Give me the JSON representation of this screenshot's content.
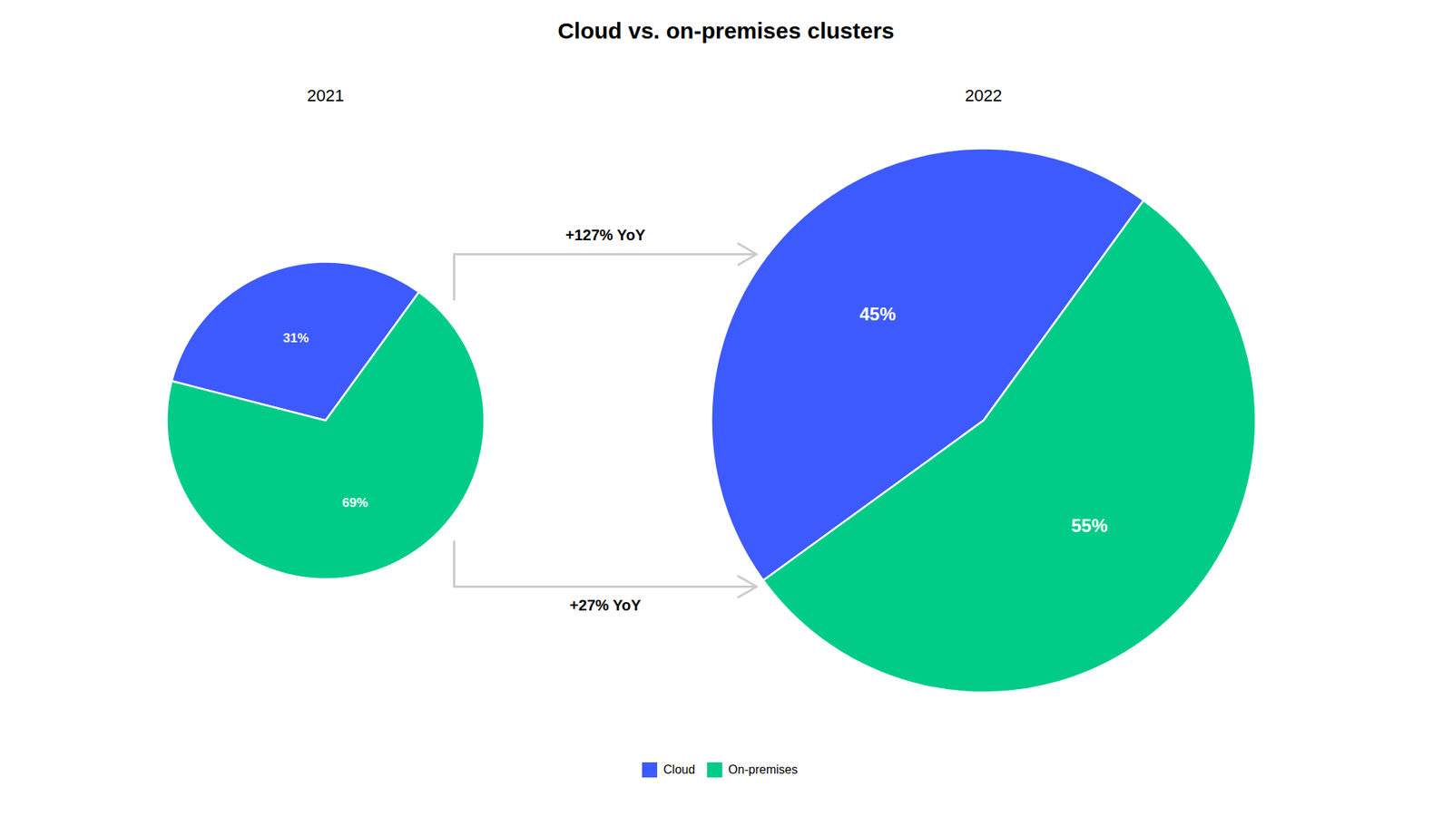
{
  "chart_data": {
    "type": "pie",
    "title": "Cloud vs. on-premises clusters",
    "categories": [
      "Cloud",
      "On-premises"
    ],
    "colors": [
      "#3d5aff",
      "#00cc88"
    ],
    "series": [
      {
        "name": "2021",
        "values": [
          31,
          69
        ],
        "value_labels": [
          "31%",
          "69%"
        ]
      },
      {
        "name": "2022",
        "values": [
          45,
          55
        ],
        "value_labels": [
          "45%",
          "55%"
        ]
      }
    ],
    "annotations": [
      "+127% YoY",
      "+27% YoY"
    ],
    "data_labels": true,
    "legend": "bottom"
  }
}
